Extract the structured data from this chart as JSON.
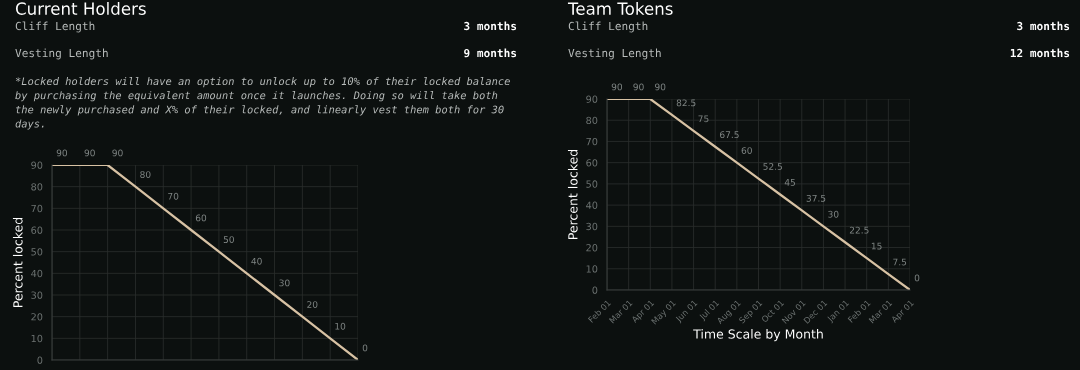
{
  "chart_data": [
    {
      "type": "line",
      "title": "Current Holders",
      "ylabel": "Percent locked",
      "annotations": [
        "Cliff Length",
        "3 months",
        "Vesting Length",
        "9 months",
        "*Locked holders will have an option to unlock up to 10% of their locked balance by purchasing the equivalent amount once it launches. Doing so will take both the newly purchased and X% of their locked, and linearly vest them both for 30 days."
      ],
      "categories": [
        null,
        null,
        null,
        null,
        null,
        null,
        null,
        null,
        null,
        null,
        null,
        null
      ],
      "series": [
        {
          "color": "#d8c2a4",
          "values": [
            90,
            90,
            90,
            80,
            70,
            60,
            50,
            40,
            30,
            20,
            10,
            0
          ]
        }
      ],
      "ylim": [
        0,
        90
      ],
      "yticks": [
        0,
        10,
        20,
        30,
        40,
        50,
        60,
        70,
        80,
        90
      ],
      "grid": true,
      "data_labels": true,
      "tick_labels": "y",
      "marker": "none",
      "line_style": "solid"
    },
    {
      "type": "line",
      "title": "Team Tokens",
      "ylabel": "Percent locked",
      "xlabel": "Time Scale by Month",
      "annotations": [
        "Cliff Length",
        "3 months",
        "Vesting Length",
        "12 months"
      ],
      "categories": [
        "Feb 01",
        "Mar 01",
        "Apr 01",
        "May 01",
        "Jun 01",
        "Jul 01",
        "Aug 01",
        "Sep 01",
        "Oct 01",
        "Nov 01",
        "Dec 01",
        "Jan 01",
        "Feb 01",
        "Mar 01",
        "Apr 01"
      ],
      "series": [
        {
          "color": "#d8c2a4",
          "values": [
            90,
            90,
            90,
            82.5,
            75,
            67.5,
            60,
            52.5,
            45,
            37.5,
            30,
            22.5,
            15,
            7.5,
            0
          ]
        }
      ],
      "ylim": [
        0,
        90
      ],
      "yticks": [
        0,
        10,
        20,
        30,
        40,
        50,
        60,
        70,
        80,
        90
      ],
      "grid": true,
      "data_labels": true,
      "marker": "none",
      "line_style": "solid"
    }
  ]
}
